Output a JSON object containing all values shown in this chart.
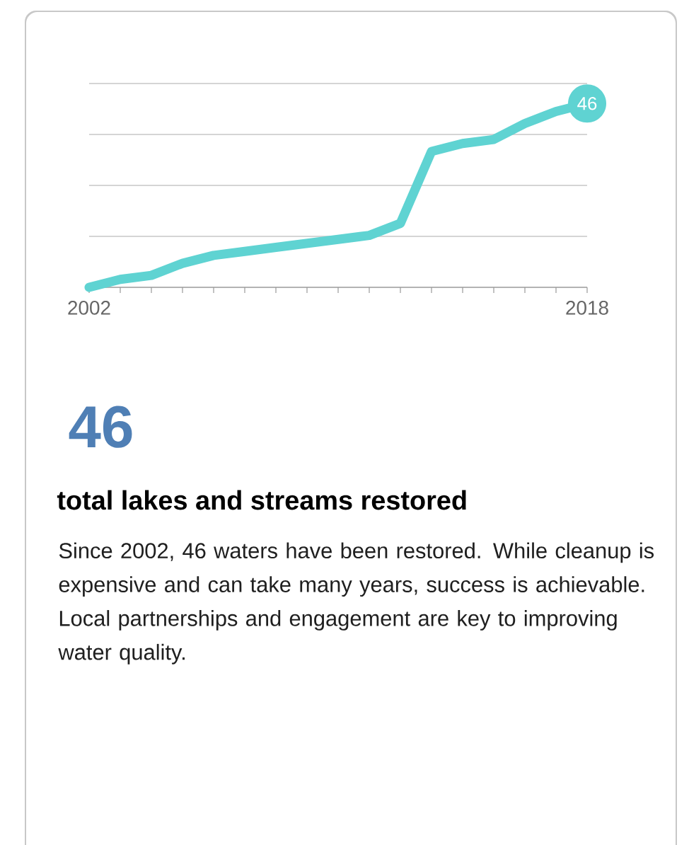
{
  "chart_data": {
    "type": "line",
    "title": "total lakes and streams restored",
    "annotations": [
      "46",
      "Since 2002, 46 waters have been restored. While cleanup is expensive and can take many years, success is achievable. Local partnerships and engagement are key to improving water quality."
    ],
    "x": [
      2002,
      2003,
      2004,
      2005,
      2006,
      2007,
      2008,
      2009,
      2010,
      2011,
      2012,
      2013,
      2014,
      2015,
      2016,
      2017,
      2018
    ],
    "values": [
      0,
      2,
      3,
      6,
      8,
      9,
      10,
      11,
      12,
      13,
      16,
      34,
      36,
      37,
      41,
      44,
      46
    ],
    "value_labels": [
      null,
      null,
      null,
      null,
      null,
      null,
      null,
      null,
      null,
      null,
      null,
      null,
      null,
      null,
      null,
      null,
      "46"
    ],
    "color": "#5fd3d2",
    "line_style": "solid",
    "xlim": [
      2002,
      2018
    ],
    "xticks": [
      2002,
      {
        "value": 2003,
        "label": null
      },
      {
        "value": 2004,
        "label": null
      },
      {
        "value": 2005,
        "label": null
      },
      {
        "value": 2006,
        "label": null
      },
      {
        "value": 2007,
        "label": null
      },
      {
        "value": 2008,
        "label": null
      },
      {
        "value": 2009,
        "label": null
      },
      {
        "value": 2010,
        "label": null
      },
      {
        "value": 2011,
        "label": null
      },
      {
        "value": 2012,
        "label": null
      },
      {
        "value": 2013,
        "label": null
      },
      {
        "value": 2014,
        "label": null
      },
      {
        "value": 2015,
        "label": null
      },
      {
        "value": 2016,
        "label": null
      },
      {
        "value": 2017,
        "label": null
      },
      2018
    ],
    "ylim": [
      0,
      51
    ],
    "yticks": [
      {
        "value": 12.75,
        "label": null
      },
      {
        "value": 25.5,
        "label": null
      },
      {
        "value": 38.25,
        "label": null
      },
      {
        "value": 51,
        "label": null
      }
    ],
    "grid": "y",
    "tick_labels": "x"
  }
}
